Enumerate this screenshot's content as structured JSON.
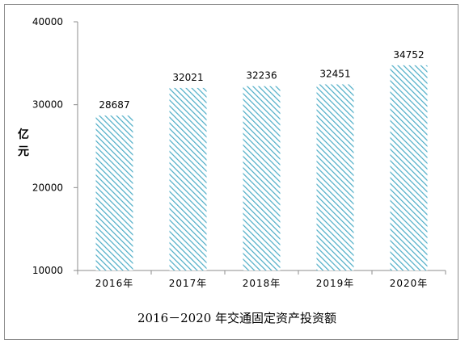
{
  "chart_data": {
    "type": "bar",
    "title": "2016－2020 年交通固定资产投资额",
    "ylabel": "亿元",
    "xlabel": "",
    "categories": [
      "2016年",
      "2017年",
      "2018年",
      "2019年",
      "2020年"
    ],
    "values": [
      28687,
      32021,
      32236,
      32451,
      34752
    ],
    "data_labels": [
      "28687",
      "32021",
      "32236",
      "32451",
      "34752"
    ],
    "ylim": [
      10000,
      40000
    ],
    "yticks": [
      "10000",
      "20000",
      "30000",
      "40000"
    ],
    "grid": false,
    "legend": "none",
    "bar_pattern": "diagonal-hatch",
    "colors": {
      "bar": "#4bacc6",
      "axis": "#8c8c8c",
      "frame": "#8c8c8c"
    }
  }
}
